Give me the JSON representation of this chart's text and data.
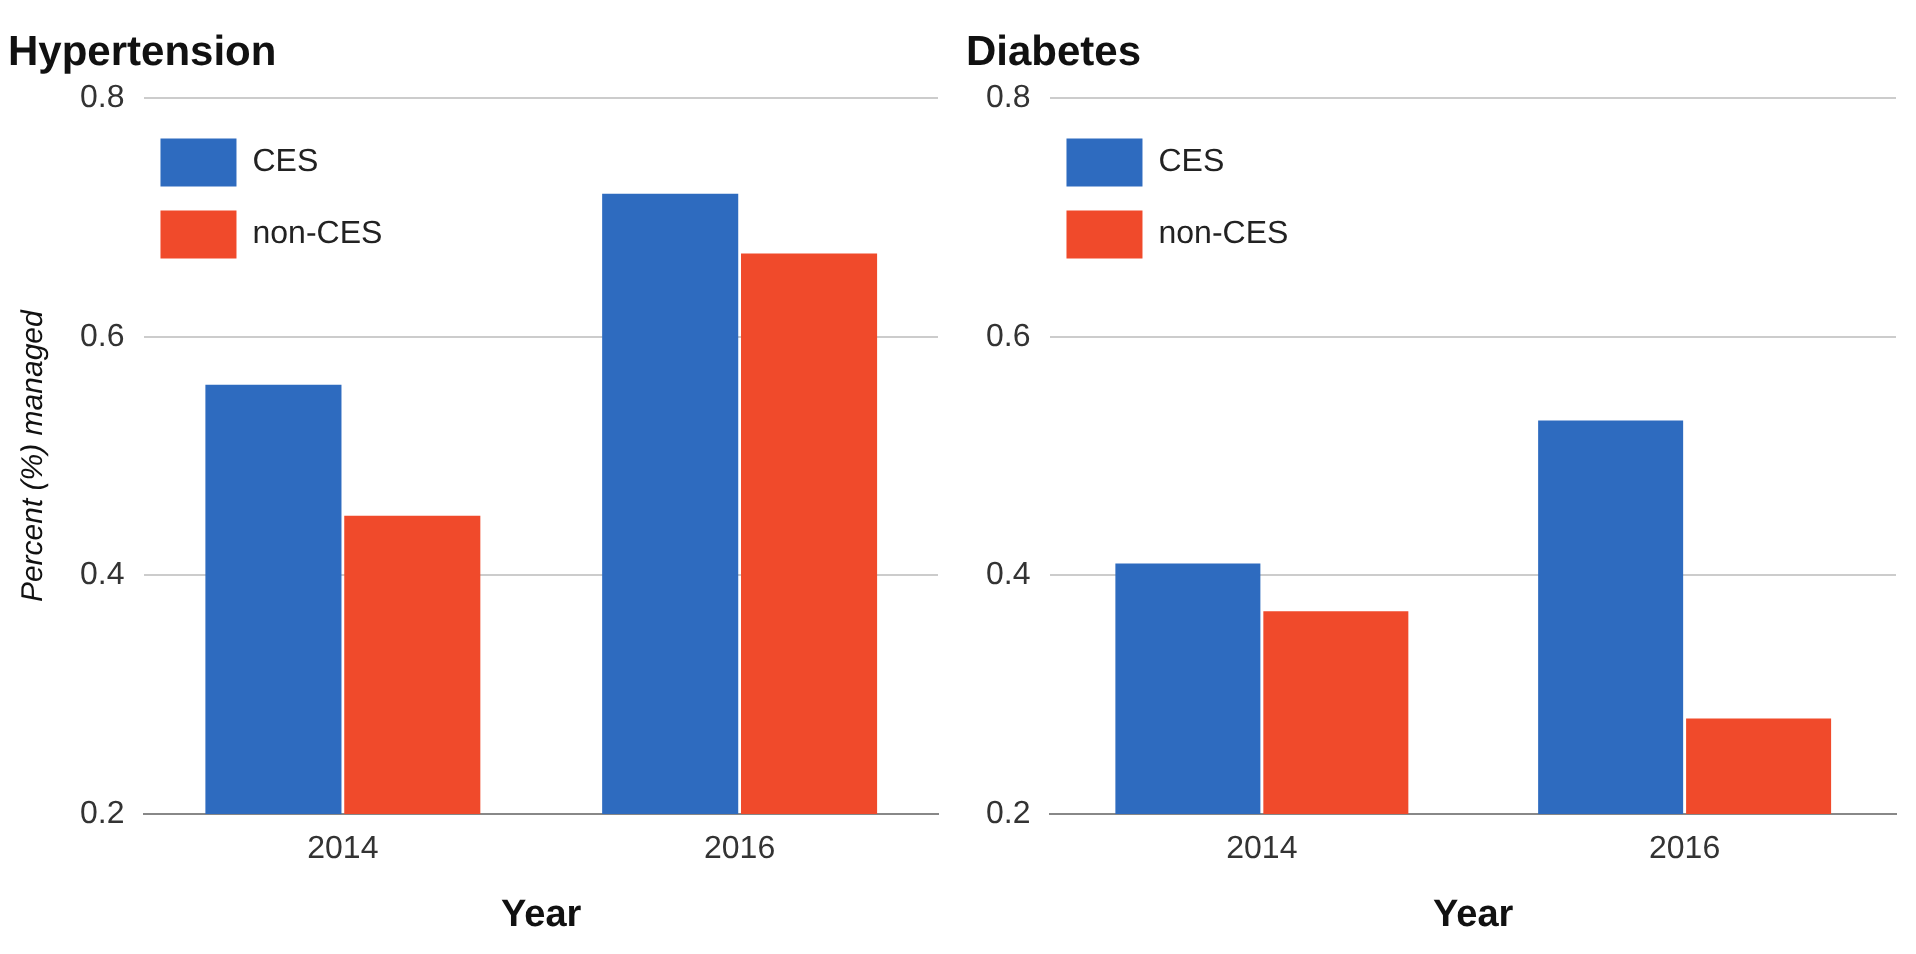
{
  "chart_data": [
    {
      "type": "bar",
      "title": "Hypertension",
      "xlabel": "Year",
      "ylabel": "Percent (%) managed",
      "categories": [
        "2014",
        "2016"
      ],
      "series": [
        {
          "name": "CES",
          "color": "#2e6bbf",
          "values": [
            0.56,
            0.72
          ]
        },
        {
          "name": "non-CES",
          "color": "#f04a2b",
          "values": [
            0.45,
            0.67
          ]
        }
      ],
      "ylim": [
        0.2,
        0.8
      ],
      "yticks": [
        0.2,
        0.4,
        0.6,
        0.8
      ],
      "grid": "y",
      "legend": "top left"
    },
    {
      "type": "bar",
      "title": "Diabetes",
      "xlabel": "Year",
      "categories": [
        "2014",
        "2016"
      ],
      "series": [
        {
          "name": "CES",
          "color": "#2e6bbf",
          "values": [
            0.41,
            0.53
          ]
        },
        {
          "name": "non-CES",
          "color": "#f04a2b",
          "values": [
            0.37,
            0.28
          ]
        }
      ],
      "ylim": [
        0.2,
        0.8
      ],
      "yticks": [
        0.2,
        0.4,
        0.6,
        0.8
      ],
      "grid": "y",
      "legend": "top left"
    }
  ]
}
